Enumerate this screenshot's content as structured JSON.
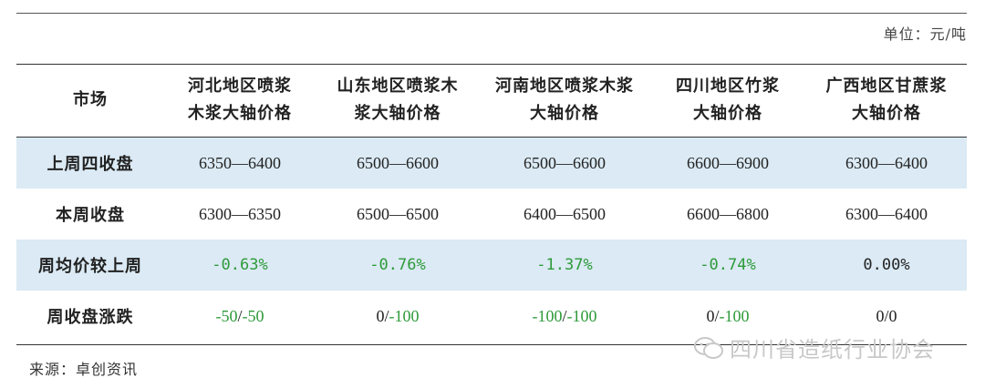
{
  "unit_label": "单位：元/吨",
  "table": {
    "headers": [
      "市场",
      "河北地区喷浆\n木浆大轴价格",
      "山东地区喷浆木\n浆大轴价格",
      "河南地区喷浆木浆\n大轴价格",
      "四川地区竹浆\n大轴价格",
      "广西地区甘蔗浆\n大轴价格"
    ],
    "rows": [
      {
        "label": "上周四收盘",
        "values": [
          "6350—6400",
          "6500—6600",
          "6500—6600",
          "6600—6900",
          "6300—6400"
        ]
      },
      {
        "label": "本周收盘",
        "values": [
          "6300—6350",
          "6500—6500",
          "6400—6500",
          "6600—6800",
          "6300—6400"
        ]
      },
      {
        "label": "周均价较上周",
        "values": [
          "-0.63%",
          "-0.76%",
          "-1.37%",
          "-0.74%",
          "0.00%"
        ]
      },
      {
        "label": "周收盘涨跌",
        "values_a": [
          "-50",
          "0",
          "-100",
          "0",
          "0"
        ],
        "values_b": [
          "-50",
          "-100",
          "-100",
          "-100",
          "0"
        ]
      }
    ]
  },
  "source": "来源：卓创资讯",
  "watermark": "四川省造纸行业协会",
  "colors": {
    "shade": "#dbeaf4",
    "negative": "#2e9a3a"
  }
}
